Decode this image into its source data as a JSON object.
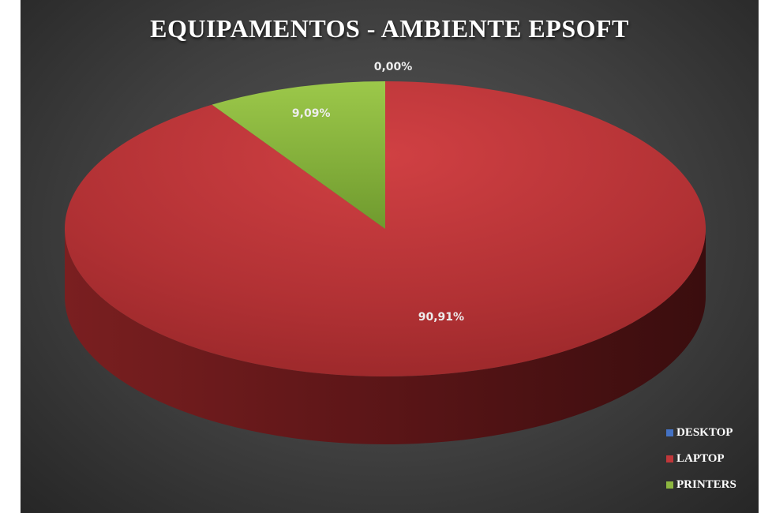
{
  "chart_data": {
    "type": "pie",
    "title": "EQUIPAMENTOS - AMBIENTE EPSOFT",
    "categories": [
      "DESKTOP",
      "LAPTOP",
      "PRINTERS"
    ],
    "values": [
      0.0,
      90.91,
      9.09
    ],
    "data_labels": [
      "0,00%",
      "90,91%",
      "9,09%"
    ],
    "colors": [
      "#4472C4",
      "#C0373A",
      "#8DB640"
    ],
    "legend_position": "bottom-right",
    "style": "3d"
  }
}
